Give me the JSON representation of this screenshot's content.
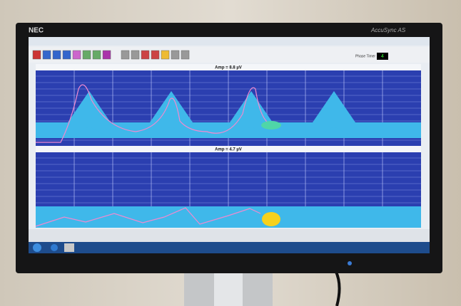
{
  "monitor": {
    "brand": "NEC",
    "model": "AccuSync AS"
  },
  "app": {
    "phase_timer_label": "Phase Timer",
    "phase_timer_value": "4",
    "panels": [
      {
        "amplitude": "Amp = 8.8  µV"
      },
      {
        "amplitude": "Amp = 4.7  µV"
      }
    ]
  }
}
